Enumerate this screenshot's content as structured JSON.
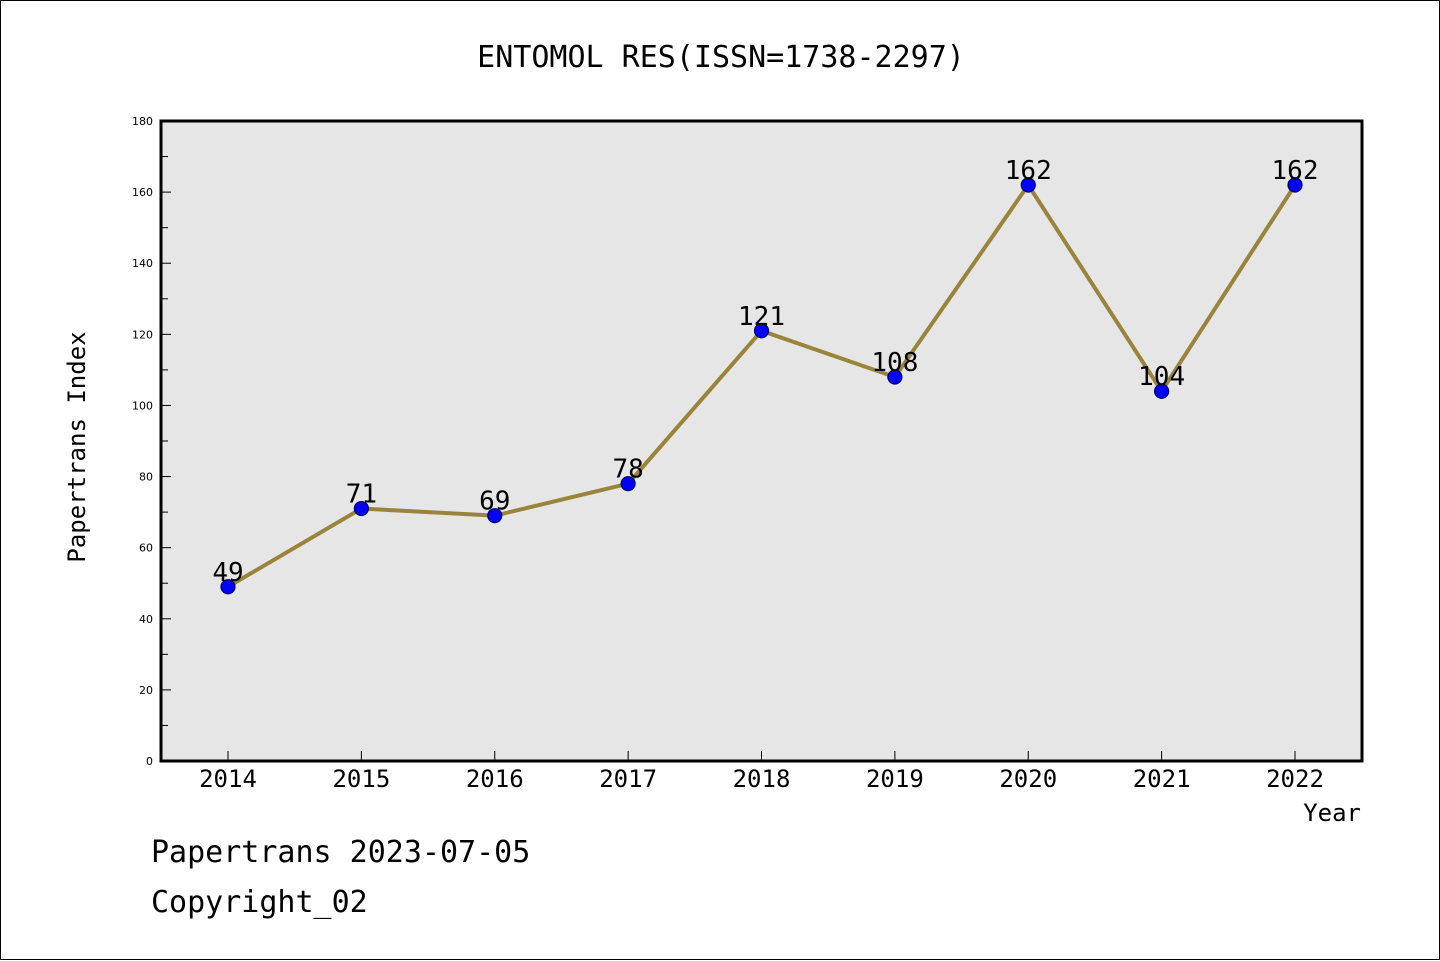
{
  "colors": {
    "plot_background": "#e6e6e6",
    "line": "#9a843c",
    "marker_fill": "#0000ff",
    "marker_stroke": "#00005a",
    "axis": "#000000"
  },
  "footer": {
    "line1": "Papertrans 2023-07-05",
    "line2": "Copyright_02"
  },
  "chart_data": {
    "type": "line",
    "title": "ENTOMOL RES(ISSN=1738-2297)",
    "xlabel": "Year",
    "ylabel": "Papertrans Index",
    "x": [
      "2014",
      "2015",
      "2016",
      "2017",
      "2018",
      "2019",
      "2020",
      "2021",
      "2022"
    ],
    "series": [
      {
        "values": [
          49,
          71,
          69,
          78,
          121,
          108,
          162,
          104,
          162
        ]
      }
    ],
    "data_labels": [
      "49",
      "71",
      "69",
      "78",
      "121",
      "108",
      "162",
      "104",
      "162"
    ],
    "ylim": [
      0,
      180
    ],
    "yticks": [
      0,
      20,
      40,
      60,
      80,
      100,
      120,
      140,
      160,
      180
    ],
    "grid": false,
    "legend": "none"
  }
}
